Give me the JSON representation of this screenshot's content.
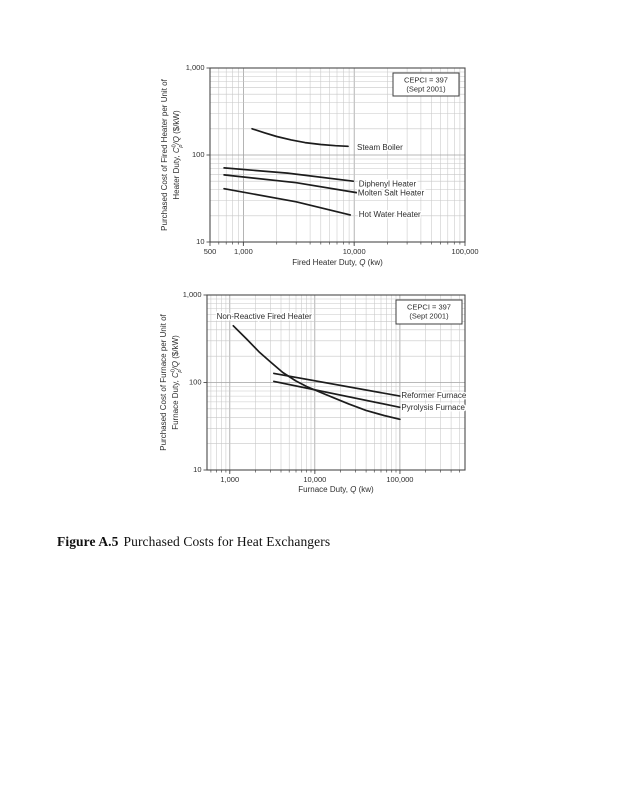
{
  "caption": {
    "number": "Figure A.5",
    "text": "Purchased Costs for Heat Exchangers"
  },
  "chart_data": [
    {
      "id": "fired-heaters",
      "type": "line",
      "x_scale": "log",
      "y_scale": "log",
      "grid": "on",
      "x_axis": {
        "min": 500,
        "max": 100000,
        "title": {
          "pre": "Fired Heater Duty,  ",
          "var": "Q",
          "post": " (kw)"
        },
        "ticks": [
          {
            "v": 500,
            "label": "500"
          },
          {
            "v": 1000,
            "label": "1,000"
          },
          {
            "v": 10000,
            "label": "10,000"
          },
          {
            "v": 100000,
            "label": "100,000"
          }
        ]
      },
      "y_axis": {
        "min": 10,
        "max": 1000,
        "title_line1": "Purchased Cost of Fired Heater per Unit of",
        "title_line2": {
          "pre": "Heater Duty, ",
          "base": "C",
          "sup": "0",
          "sub": "p",
          "denom": "/Q",
          "units": " ($/kW)"
        },
        "ticks": [
          {
            "v": 10,
            "label": "10"
          },
          {
            "v": 100,
            "label": "100"
          },
          {
            "v": 1000,
            "label": "1,000"
          }
        ]
      },
      "legend": {
        "line1": "CEPCI = 397",
        "line2": "(Sept 2001)"
      },
      "series": [
        {
          "name": "Steam Boiler",
          "label_at": {
            "x": 10600,
            "y": 120
          },
          "points": [
            [
              1200,
              200
            ],
            [
              1550,
              180
            ],
            [
              2000,
              163
            ],
            [
              2700,
              149
            ],
            [
              3600,
              139
            ],
            [
              5000,
              132
            ],
            [
              6800,
              128
            ],
            [
              8800,
              126
            ]
          ]
        },
        {
          "name": "Diphenyl Heater",
          "label_at": {
            "x": 11000,
            "y": 46
          },
          "points": [
            [
              670,
              71
            ],
            [
              2500,
              62
            ],
            [
              9800,
              50
            ]
          ]
        },
        {
          "name": "Molten Salt Heater",
          "label_at": {
            "x": 10800,
            "y": 36
          },
          "points": [
            [
              670,
              59
            ],
            [
              3000,
              48
            ],
            [
              10500,
              37
            ]
          ]
        },
        {
          "name": "Hot Water Heater",
          "label_at": {
            "x": 11000,
            "y": 20.5
          },
          "points": [
            [
              670,
              41
            ],
            [
              3000,
              29
            ],
            [
              9200,
              20.5
            ]
          ]
        }
      ]
    },
    {
      "id": "furnaces",
      "type": "line",
      "x_scale": "log",
      "y_scale": "log",
      "grid": "on",
      "x_axis": {
        "min": 540,
        "max": 582000,
        "title": {
          "pre": "Furnace Duty,  ",
          "var": "Q",
          "post": " (kw)"
        },
        "ticks": [
          {
            "v": 1000,
            "label": "1,000"
          },
          {
            "v": 10000,
            "label": "10,000"
          },
          {
            "v": 100000,
            "label": "100,000"
          }
        ]
      },
      "y_axis": {
        "min": 10,
        "max": 1000,
        "title_line1": "Purchased Cost of Furnace per Unit of",
        "title_line2": {
          "pre": "Furnace Duty, ",
          "base": "C",
          "sup": "0",
          "sub": "p",
          "denom": "/Q",
          "units": " ($/kW)"
        },
        "ticks": [
          {
            "v": 10,
            "label": "10"
          },
          {
            "v": 100,
            "label": "100"
          },
          {
            "v": 1000,
            "label": "1,000"
          }
        ]
      },
      "legend": {
        "line1": "CEPCI = 397",
        "line2": "(Sept 2001)"
      },
      "series": [
        {
          "name": "Non-Reactive Fired Heater",
          "label_at": {
            "x": 700,
            "y": 560
          },
          "points": [
            [
              1100,
              445
            ],
            [
              1600,
              310
            ],
            [
              2200,
              225
            ],
            [
              3000,
              172
            ],
            [
              4200,
              130
            ],
            [
              6000,
              104
            ],
            [
              8000,
              90
            ],
            [
              11000,
              79
            ],
            [
              16000,
              68
            ],
            [
              25000,
              57
            ],
            [
              40000,
              48
            ],
            [
              65000,
              42
            ],
            [
              100000,
              38
            ]
          ]
        },
        {
          "name": "Reformer Furnace",
          "label_at": {
            "x": 104000,
            "y": 70
          },
          "points": [
            [
              3300,
              127
            ],
            [
              100000,
              70
            ]
          ]
        },
        {
          "name": "Pyrolysis Furnace",
          "label_at": {
            "x": 104000,
            "y": 51
          },
          "points": [
            [
              3300,
              103
            ],
            [
              100000,
              52
            ]
          ]
        }
      ]
    }
  ]
}
